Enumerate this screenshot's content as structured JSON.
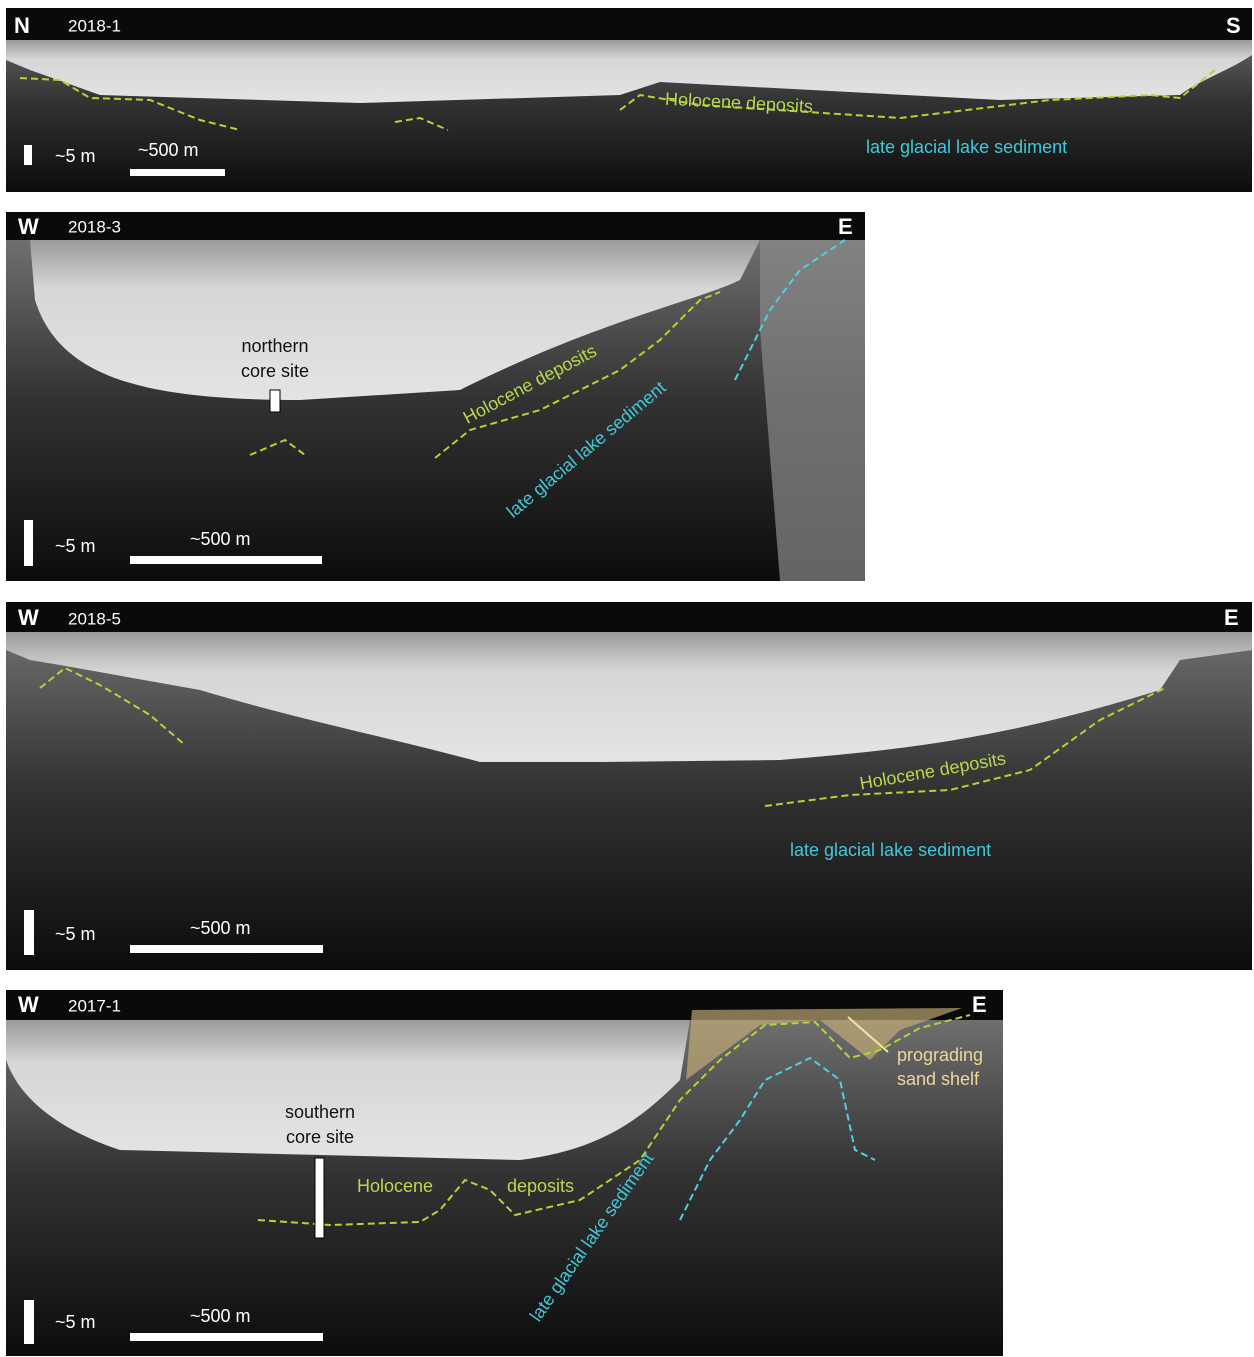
{
  "panels": [
    {
      "id": "2018-1",
      "left": "N",
      "right": "S",
      "annotations": [
        "Holocene deposits",
        "late glacial lake sediment"
      ],
      "scale_vertical": "~5 m",
      "scale_horizontal": "~500 m"
    },
    {
      "id": "2018-3",
      "left": "W",
      "right": "E",
      "core_site": [
        "northern",
        "core site"
      ],
      "annotations": [
        "Holocene deposits",
        "late glacial lake sediment"
      ],
      "scale_vertical": "~5 m",
      "scale_horizontal": "~500 m"
    },
    {
      "id": "2018-5",
      "left": "W",
      "right": "E",
      "annotations": [
        "Holocene deposits",
        "late glacial lake sediment"
      ],
      "scale_vertical": "~5 m",
      "scale_horizontal": "~500 m"
    },
    {
      "id": "2017-1",
      "left": "W",
      "right": "E",
      "core_site": [
        "southern",
        "core site"
      ],
      "annotations": [
        "Holocene",
        "deposits",
        "late glacial lake sediment",
        "prograding",
        "sand shelf"
      ],
      "scale_vertical": "~5 m",
      "scale_horizontal": "~500 m"
    }
  ]
}
